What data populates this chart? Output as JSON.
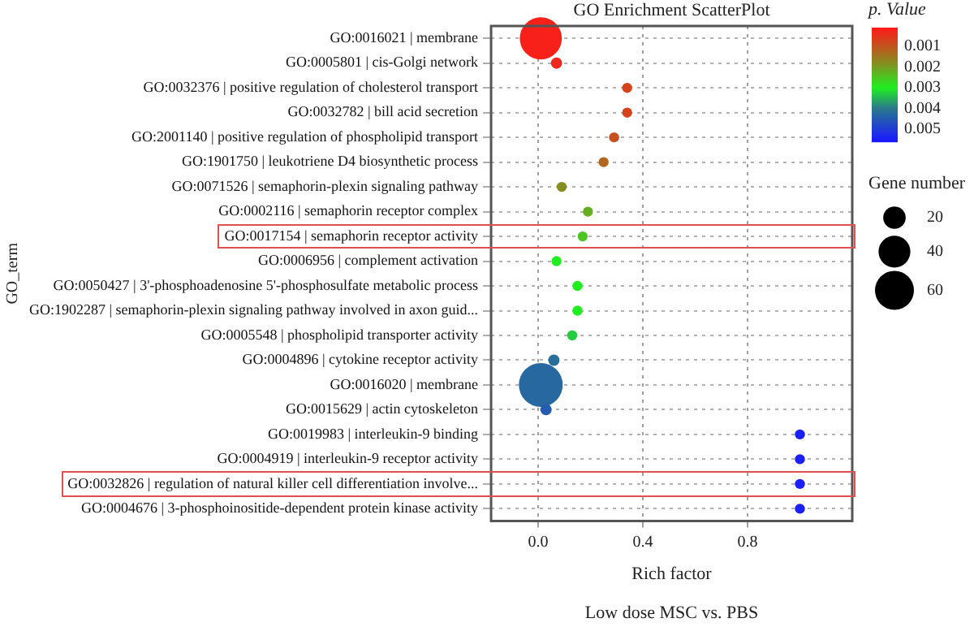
{
  "chart_data": {
    "type": "bubble",
    "title": "GO Enrichment ScatterPlot",
    "xlabel": "Rich factor",
    "ylabel": "GO_term",
    "clabel": "p. Value",
    "legend_title": "Gene number",
    "categories": [
      "GO:0016021 | membrane",
      "GO:0005801 | cis-Golgi network",
      "GO:0032376 | positive regulation of cholesterol transport",
      "GO:0032782 | bill acid secretion",
      "GO:2001140 | positive regulation of phospholipid transport",
      "GO:1901750 | leukotriene D4 biosynthetic process",
      "GO:0071526 | semaphorin-plexin signaling pathway",
      "GO:0002116 | semaphorin receptor complex",
      "GO:0017154 | semaphorin receptor activity",
      "GO:0006956 | complement activation",
      "GO:0050427 | 3'-phosphoadenosine 5'-phosphosulfate metabolic process",
      "GO:1902287 | semaphorin-plexin signaling pathway involved in axon guid...",
      "GO:0005548 | phospholipid transporter activity",
      "GO:0004896 | cytokine receptor activity",
      "GO:0016020 | membrane",
      "GO:0015629 | actin cytoskeleton",
      "GO:0019983 | interleukin-9 binding",
      "GO:0004919 | interleukin-9 receptor activity",
      "GO:0032826 | regulation of natural killer cell differentiation involve...",
      "GO:0004676 | 3-phosphoinositide-dependent protein kinase activity"
    ],
    "values": [
      0.01,
      0.07,
      0.34,
      0.34,
      0.29,
      0.25,
      0.09,
      0.19,
      0.17,
      0.07,
      0.15,
      0.15,
      0.13,
      0.06,
      0.01,
      0.03,
      1.0,
      1.0,
      1.0,
      1.0
    ],
    "sizes": [
      70,
      5,
      4,
      4,
      4,
      4,
      4,
      4,
      4,
      4,
      4,
      4,
      4,
      5,
      76,
      5,
      4,
      4,
      4,
      4
    ],
    "size_legend": [
      20,
      40,
      60
    ],
    "cvalues": [
      0.0002,
      0.0003,
      0.0007,
      0.0007,
      0.0009,
      0.0012,
      0.0018,
      0.0022,
      0.0025,
      0.003,
      0.003,
      0.003,
      0.0033,
      0.0042,
      0.0043,
      0.0045,
      0.0055,
      0.0055,
      0.0055,
      0.0055
    ],
    "clim": [
      0.0001,
      0.0056
    ],
    "cticks": [
      0.001,
      0.002,
      0.003,
      0.004,
      0.005
    ],
    "xlim": [
      -0.18,
      1.2
    ],
    "xticks": [
      {
        "value": 0,
        "label": "0.0"
      },
      0.4,
      0.8
    ],
    "orientation": "horizontal",
    "grid": true,
    "annotations": [
      "Low dose MSC vs. PBS"
    ]
  }
}
